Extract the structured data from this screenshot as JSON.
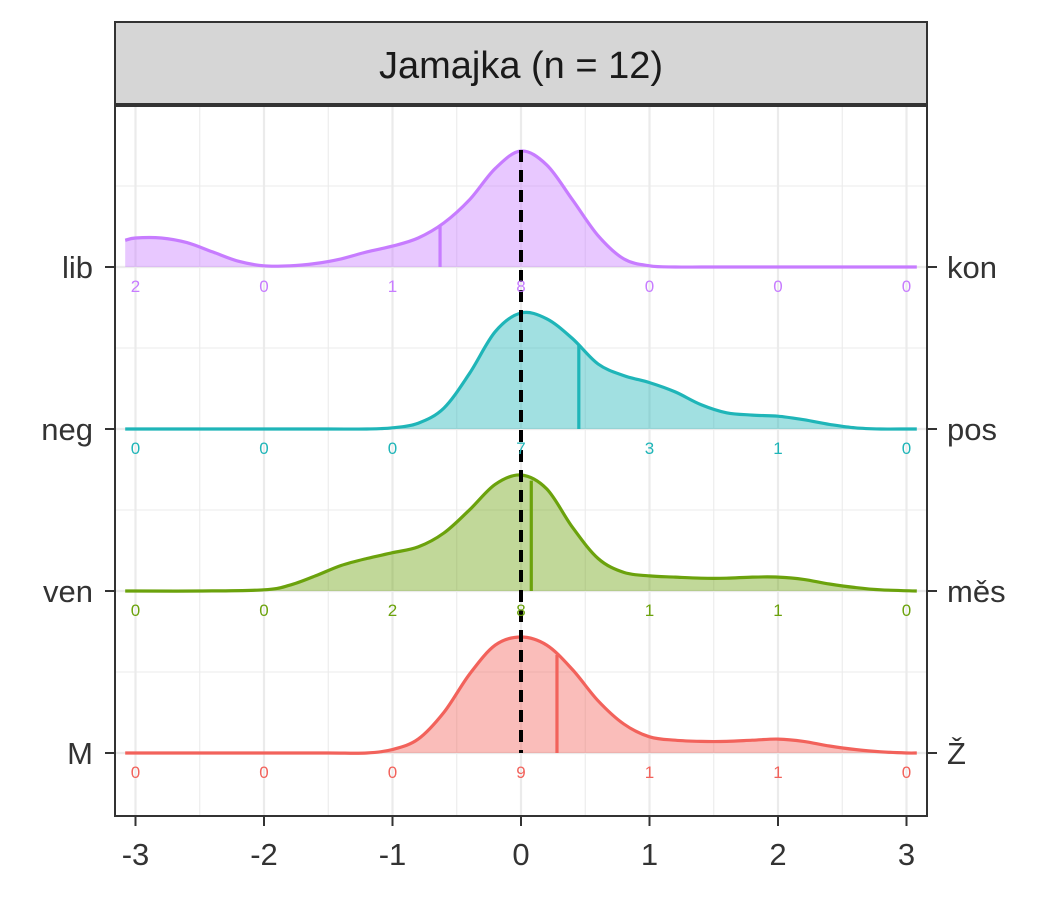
{
  "chart_data": {
    "type": "area",
    "title": "Jamajka (n = 12)",
    "xlabel": "",
    "ylabel": "",
    "xlim": [
      -3.1,
      3.1
    ],
    "x_ticks": [
      "-3",
      "-2",
      "-1",
      "0",
      "1",
      "2",
      "3"
    ],
    "grid": true,
    "reference_line_x": 0,
    "legend": "none",
    "series": [
      {
        "left_label": "lib",
        "right_label": "kon",
        "color": "#C77CFF",
        "mean": -0.63,
        "counts": [
          2,
          0,
          1,
          8,
          0,
          0,
          0
        ],
        "curve_x": [
          -3.08,
          -3.0,
          -2.8,
          -2.6,
          -2.4,
          -2.2,
          -2.0,
          -1.8,
          -1.6,
          -1.4,
          -1.2,
          -1.0,
          -0.8,
          -0.6,
          -0.4,
          -0.2,
          0.0,
          0.2,
          0.4,
          0.6,
          0.8,
          1.0,
          1.2,
          1.4,
          1.6,
          1.8,
          2.0,
          2.2,
          2.4,
          2.6,
          2.8,
          3.08
        ],
        "curve_y": [
          0.23,
          0.25,
          0.25,
          0.21,
          0.13,
          0.05,
          0.01,
          0.01,
          0.03,
          0.07,
          0.13,
          0.18,
          0.25,
          0.38,
          0.58,
          0.85,
          1.0,
          0.88,
          0.58,
          0.27,
          0.07,
          0.01,
          0.0,
          0.0,
          0.0,
          0.0,
          0.0,
          0.0,
          0.0,
          0.0,
          0.0,
          0.0
        ]
      },
      {
        "left_label": "neg",
        "right_label": "pos",
        "color": "#1FB5B8",
        "mean": 0.45,
        "counts": [
          0,
          0,
          0,
          7,
          3,
          1,
          0
        ],
        "curve_x": [
          -3.08,
          -3.0,
          -2.5,
          -2.0,
          -1.5,
          -1.2,
          -1.0,
          -0.8,
          -0.6,
          -0.4,
          -0.2,
          0.0,
          0.2,
          0.4,
          0.6,
          0.8,
          1.0,
          1.2,
          1.4,
          1.6,
          1.8,
          2.0,
          2.2,
          2.4,
          2.6,
          2.8,
          3.0,
          3.08
        ],
        "curve_y": [
          0.0,
          0.0,
          0.0,
          0.0,
          0.0,
          0.0,
          0.01,
          0.05,
          0.18,
          0.48,
          0.84,
          1.0,
          0.95,
          0.78,
          0.56,
          0.46,
          0.4,
          0.32,
          0.21,
          0.14,
          0.12,
          0.11,
          0.08,
          0.04,
          0.01,
          0.0,
          0.0,
          0.0
        ]
      },
      {
        "left_label": "ven",
        "right_label": "měs",
        "color": "#6BA20C",
        "mean": 0.08,
        "counts": [
          0,
          0,
          2,
          8,
          1,
          1,
          0
        ],
        "curve_x": [
          -3.08,
          -3.0,
          -2.5,
          -2.0,
          -1.8,
          -1.6,
          -1.4,
          -1.2,
          -1.0,
          -0.8,
          -0.6,
          -0.4,
          -0.2,
          0.0,
          0.2,
          0.4,
          0.6,
          0.8,
          1.0,
          1.2,
          1.4,
          1.6,
          1.8,
          2.0,
          2.2,
          2.4,
          2.6,
          2.8,
          3.08
        ],
        "curve_y": [
          0.0,
          0.0,
          0.0,
          0.01,
          0.05,
          0.13,
          0.22,
          0.28,
          0.33,
          0.38,
          0.5,
          0.7,
          0.92,
          1.0,
          0.88,
          0.55,
          0.28,
          0.16,
          0.13,
          0.12,
          0.11,
          0.11,
          0.12,
          0.12,
          0.1,
          0.06,
          0.03,
          0.01,
          0.0
        ]
      },
      {
        "left_label": "M",
        "right_label": "Ž",
        "color": "#F2625B",
        "mean": 0.28,
        "counts": [
          0,
          0,
          0,
          9,
          1,
          1,
          0
        ],
        "curve_x": [
          -3.08,
          -3.0,
          -2.5,
          -2.0,
          -1.5,
          -1.2,
          -1.0,
          -0.8,
          -0.6,
          -0.4,
          -0.2,
          0.0,
          0.2,
          0.4,
          0.6,
          0.8,
          1.0,
          1.2,
          1.4,
          1.6,
          1.8,
          2.0,
          2.2,
          2.4,
          2.6,
          2.8,
          3.0,
          3.08
        ],
        "curve_y": [
          0.0,
          0.0,
          0.0,
          0.0,
          0.0,
          0.0,
          0.03,
          0.12,
          0.35,
          0.68,
          0.93,
          1.0,
          0.93,
          0.72,
          0.45,
          0.25,
          0.14,
          0.11,
          0.1,
          0.1,
          0.11,
          0.12,
          0.1,
          0.06,
          0.03,
          0.01,
          0.0,
          0.0
        ]
      }
    ]
  }
}
